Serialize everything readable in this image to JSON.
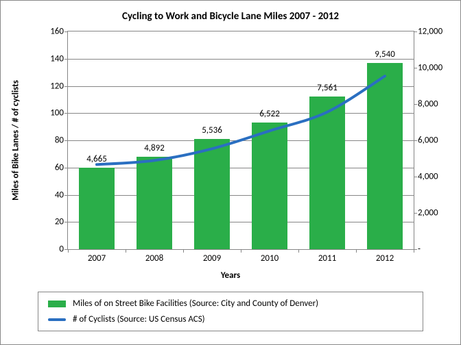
{
  "chart": {
    "type": "bar+line",
    "title": "Cycling to Work and Bicycle Lane Miles 2007 - 2012",
    "title_fontsize": 15,
    "x_axis": {
      "title": "Years",
      "categories": [
        "2007",
        "2008",
        "2009",
        "2010",
        "2011",
        "2012"
      ],
      "label_fontsize": 13
    },
    "y_left": {
      "title": "Miles of Bike Lanes / # of cyclists",
      "min": 0,
      "max": 160,
      "step": 20,
      "label_fontsize": 13
    },
    "y_right": {
      "min": 0,
      "max": 12000,
      "step": 2000,
      "tick_labels": [
        "-",
        "2,000",
        "4,000",
        "6,000",
        "8,000",
        "10,000",
        "12,000"
      ],
      "label_fontsize": 13
    },
    "bar_series": {
      "name": "Miles of on Street Bike Facilities (Source: City and County of Denver)",
      "values": [
        60,
        68,
        81,
        93,
        112,
        137
      ],
      "color": "#2aae49",
      "bar_width_ratio": 0.62,
      "data_labels": [
        "4,665",
        "4,892",
        "5,536",
        "6,522",
        "7,561",
        "9,540"
      ]
    },
    "line_series": {
      "name": "# of Cyclists (Source:  US Census ACS)",
      "values": [
        4665,
        4892,
        5536,
        6522,
        7561,
        9540
      ],
      "color": "#2a6fc1",
      "line_width": 4
    },
    "background_color": "#ffffff",
    "grid_color": "#868686",
    "plot_border_color": "#868686",
    "text_color": "#000000",
    "legend_swatch_width": 26
  }
}
